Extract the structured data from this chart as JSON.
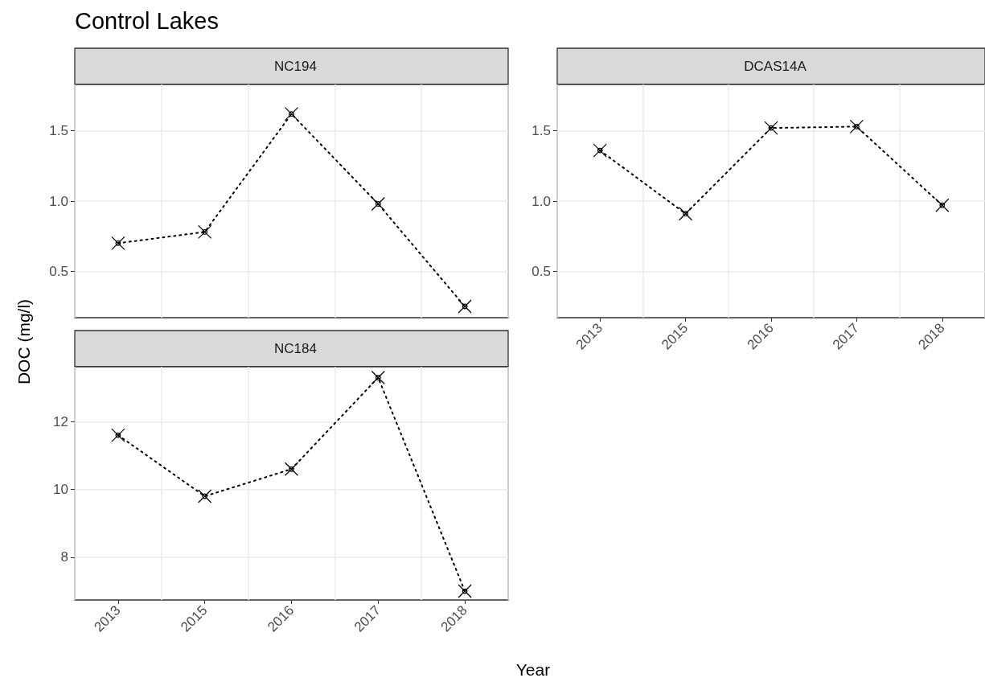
{
  "chart_data": [
    {
      "type": "line",
      "title": "NC194",
      "annotations": [
        "Control Lakes"
      ],
      "ylabel": "DOC (mg/l)",
      "categories": [
        "2013",
        "2015",
        "2016",
        "2017",
        "2018"
      ],
      "series": [
        {
          "color": "#000000",
          "values": [
            0.7,
            0.78,
            1.62,
            0.98,
            0.25
          ]
        }
      ],
      "ylim": [
        0.17,
        1.83
      ],
      "yticks": [
        0.5,
        {
          "value": 1,
          "label": "1.0"
        },
        1.5
      ],
      "grid": true,
      "marker": "cross",
      "line_style": "dotted",
      "tick_labels": "y"
    },
    {
      "type": "line",
      "title": "DCAS14A",
      "categories": [
        "2013",
        "2015",
        "2016",
        "2017",
        "2018"
      ],
      "series": [
        {
          "color": "#000000",
          "values": [
            1.36,
            0.91,
            1.52,
            1.53,
            0.97
          ]
        }
      ],
      "ylim": [
        0.17,
        1.83
      ],
      "yticks": [
        0.5,
        {
          "value": 1,
          "label": "1.0"
        },
        1.5
      ],
      "grid": true,
      "marker": "cross",
      "line_style": "dotted"
    },
    {
      "type": "line",
      "title": "NC184",
      "xlabel": "Year",
      "categories": [
        "2013",
        "2015",
        "2016",
        "2017",
        "2018"
      ],
      "series": [
        {
          "color": "#000000",
          "values": [
            11.6,
            9.8,
            10.6,
            13.3,
            7.0
          ]
        }
      ],
      "ylim": [
        6.74,
        13.62
      ],
      "yticks": [
        8,
        10,
        12
      ],
      "grid": true,
      "marker": "cross",
      "line_style": "dotted"
    }
  ]
}
